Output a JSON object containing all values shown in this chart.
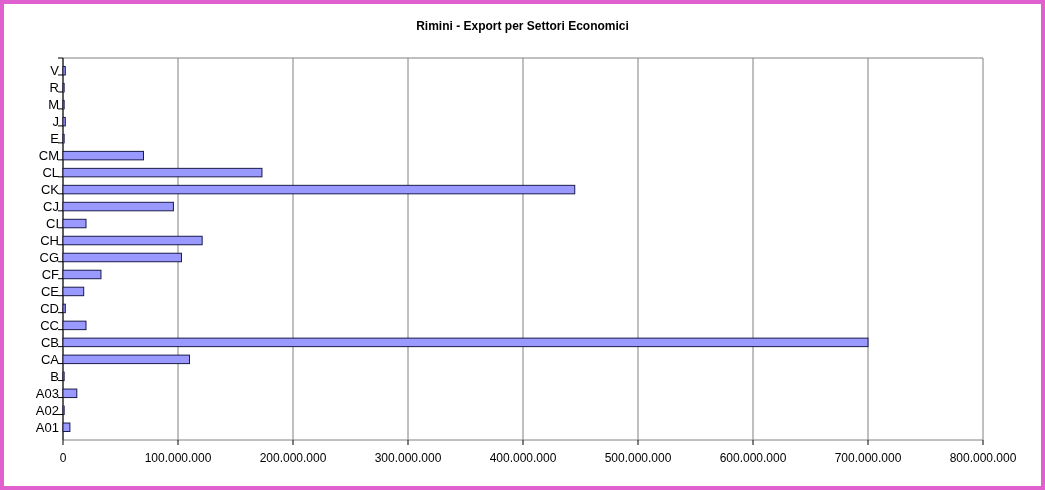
{
  "chart_data": {
    "type": "bar",
    "orientation": "horizontal",
    "title": "Rimini - Export per Settori Economici",
    "categories": [
      "V",
      "R",
      "M",
      "J",
      "E",
      "CM",
      "CL",
      "CK",
      "CJ",
      "CI",
      "CH",
      "CG",
      "CF",
      "CE",
      "CD",
      "CC",
      "CB",
      "CA",
      "B",
      "A03",
      "A02",
      "A01"
    ],
    "values": [
      2000000,
      1000000,
      1000000,
      2000000,
      1000000,
      70000000,
      173000000,
      445000000,
      96000000,
      20000000,
      121000000,
      103000000,
      33000000,
      18000000,
      2000000,
      20000000,
      700000000,
      110000000,
      1000000,
      12000000,
      1000000,
      6000000
    ],
    "color": "#9999ff",
    "xlim": [
      0,
      800000000
    ],
    "xticks": [
      0,
      {
        "value": 100000000,
        "label": "100.000.000"
      },
      {
        "value": 200000000,
        "label": "200.000.000"
      },
      {
        "value": 300000000,
        "label": "300.000.000"
      },
      {
        "value": 400000000,
        "label": "400.000.000"
      },
      {
        "value": 500000000,
        "label": "500.000.000"
      },
      {
        "value": 600000000,
        "label": "600.000.000"
      },
      {
        "value": 700000000,
        "label": "700.000.000"
      },
      {
        "value": 800000000,
        "label": "800.000.000"
      }
    ],
    "grid": "x"
  }
}
